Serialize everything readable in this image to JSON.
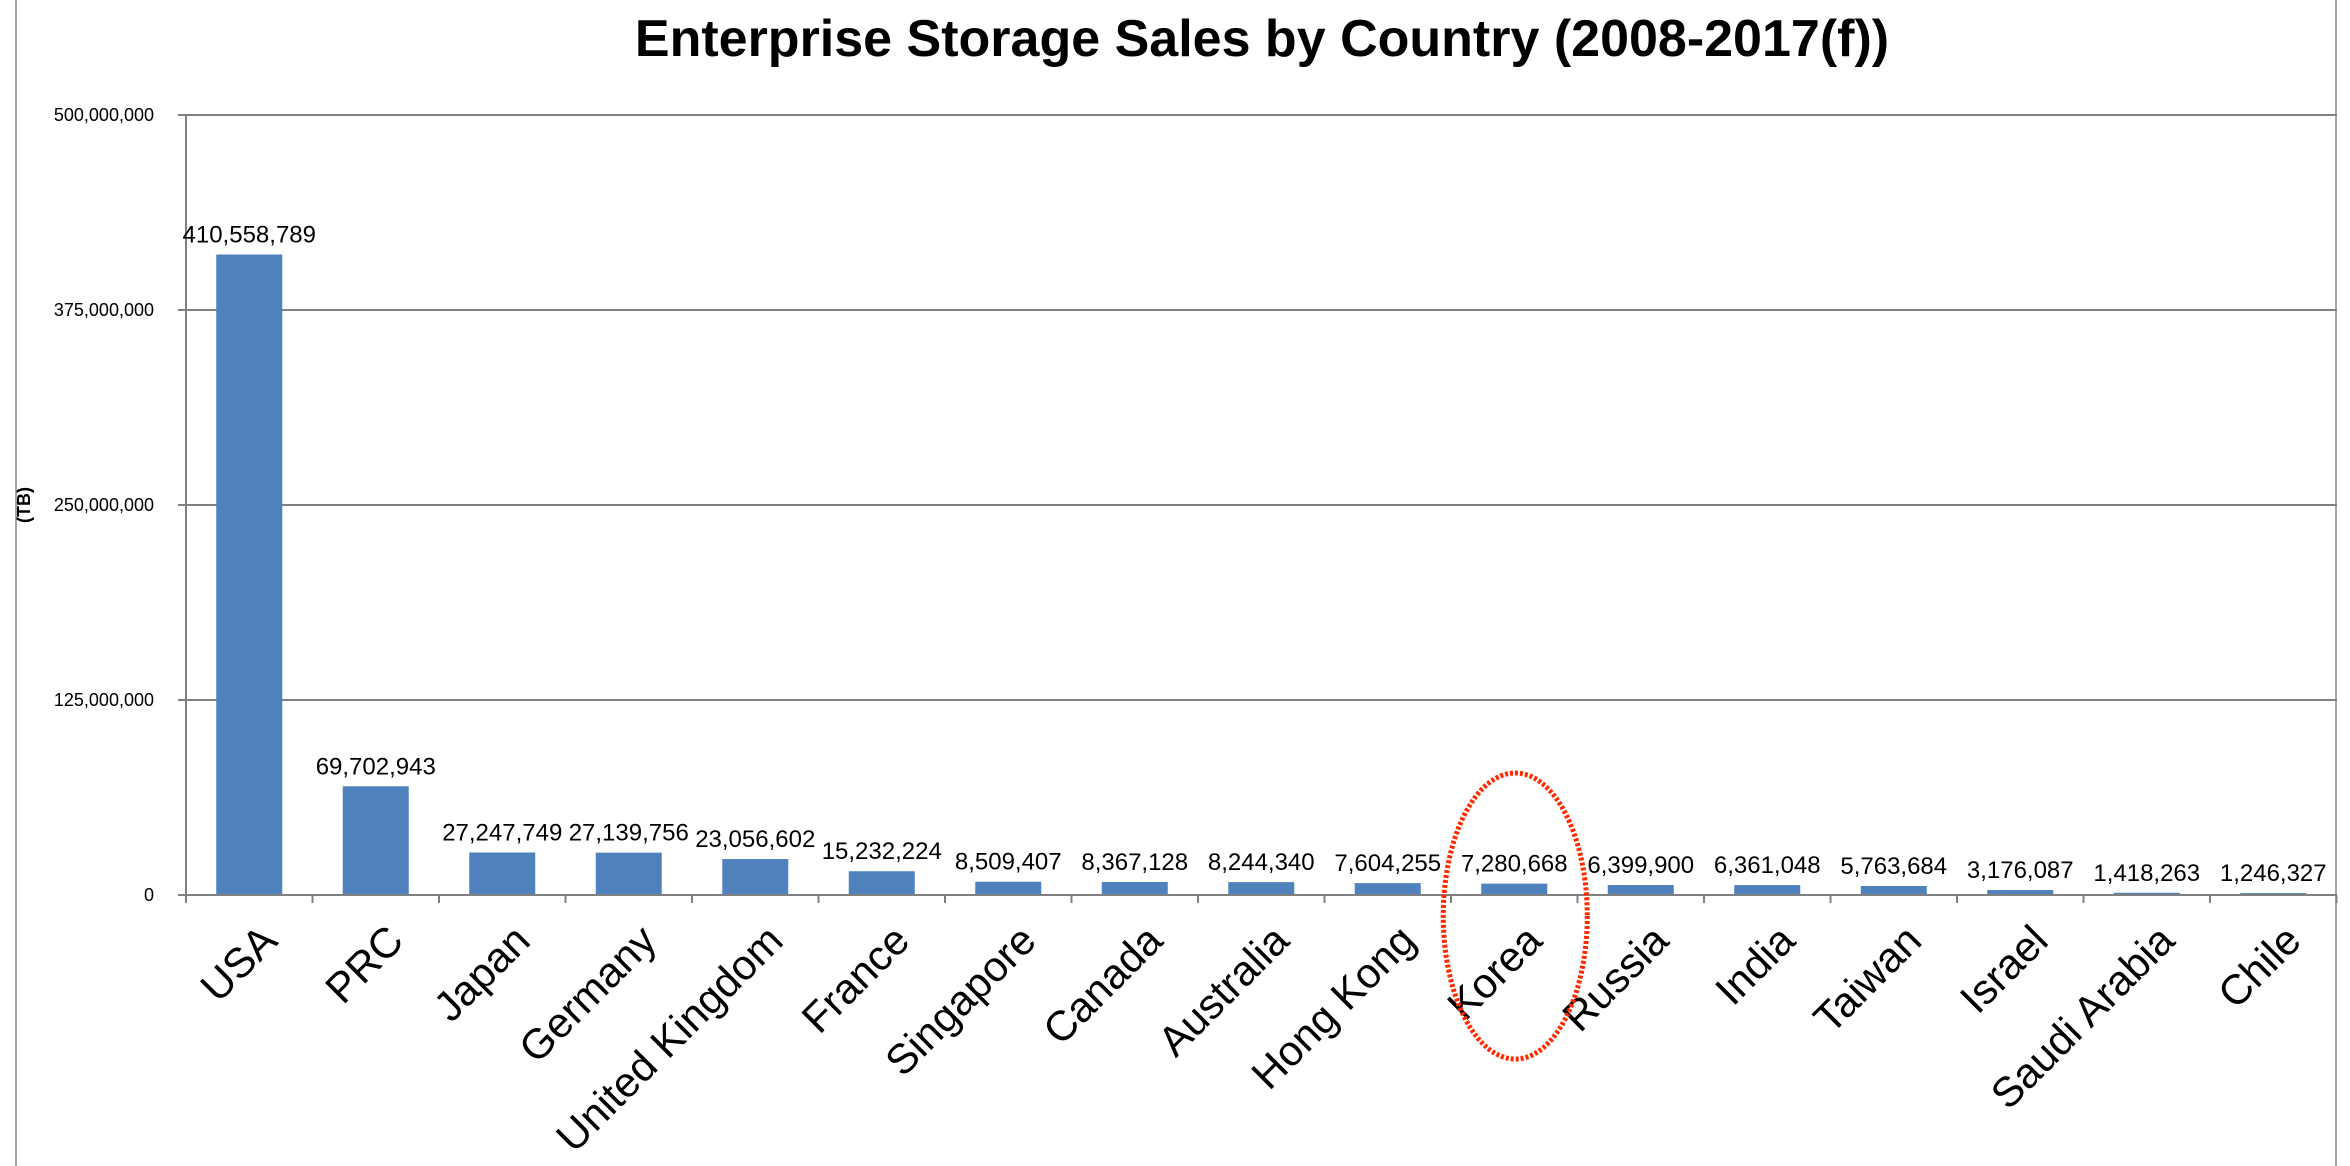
{
  "chart_data": {
    "type": "bar",
    "title": "Enterprise Storage Sales by Country (2008-2017(f))",
    "ylabel": "(TB)",
    "xlabel": "",
    "ylim": [
      0,
      500000000
    ],
    "yticks": [
      0,
      125000000,
      250000000,
      375000000,
      500000000
    ],
    "ytick_labels": [
      "0",
      "125,000,000",
      "250,000,000",
      "375,000,000",
      "500,000,000"
    ],
    "grid": true,
    "legend": "none",
    "bar_color": "#4f81bd",
    "categories": [
      "USA",
      "PRC",
      "Japan",
      "Germany",
      "United Kingdom",
      "France",
      "Singapore",
      "Canada",
      "Australia",
      "Hong Kong",
      "Korea",
      "Russia",
      "India",
      "Taiwan",
      "Israel",
      "Saudi Arabia",
      "Chile"
    ],
    "values": [
      410558789,
      69702943,
      27247749,
      27139756,
      23056602,
      15232224,
      8509407,
      8367128,
      8244340,
      7604255,
      7280668,
      6399900,
      6361048,
      5763684,
      3176087,
      1418263,
      1246327
    ],
    "value_labels": [
      "410,558,789",
      "69,702,943",
      "27,247,749",
      "27,139,756",
      "23,056,602",
      "15,232,224",
      "8,509,407",
      "8,367,128",
      "8,244,340",
      "7,604,255",
      "7,280,668",
      "6,399,900",
      "6,361,048",
      "5,763,684",
      "3,176,087",
      "1,418,263",
      "1,246,327"
    ],
    "highlight": {
      "category": "Korea",
      "shape": "ellipse",
      "color": "#ff2a00"
    }
  }
}
